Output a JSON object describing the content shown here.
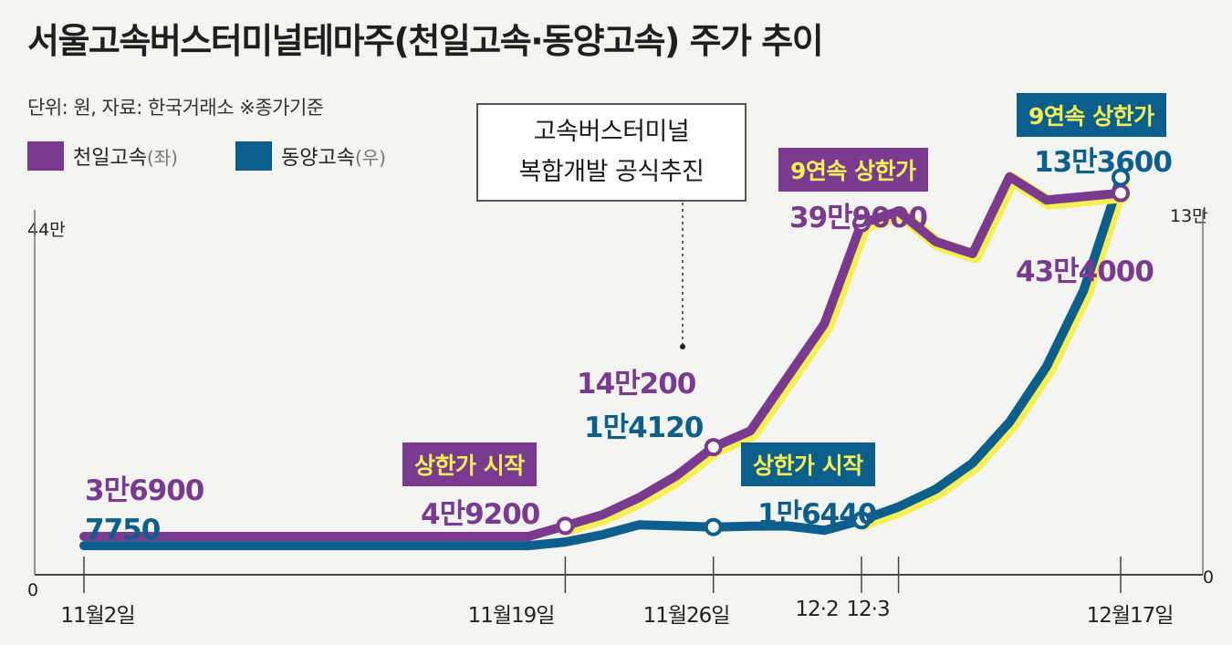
{
  "title": "서울고속버스터미널테마주(천일고속·동양고속) 주가 추이",
  "unit_source": "단위: 원, 자료: 한국거래소 ※종가기준",
  "legend": [
    {
      "name": "천일고속",
      "side": "(좌)",
      "color": "#7a3a8f"
    },
    {
      "name": "동양고속",
      "side": "(우)",
      "color": "#0c5f8c"
    }
  ],
  "colors": {
    "purple": "#7a3a8f",
    "blue": "#0c5f8c",
    "highlight": "#f7f055",
    "background": "#f4f4f2"
  },
  "callout": {
    "line1": "고속버스터미널",
    "line2": "복합개발 공식추진"
  },
  "labels": {
    "start_purple": "3만6900",
    "start_blue": "7750",
    "limit_start_1": "상한가 시작",
    "nov19_purple": "4만9200",
    "nov26_purple": "14만200",
    "nov26_blue": "1만4120",
    "limit_start_2": "상한가 시작",
    "dec2_blue": "1만6440",
    "limit9_purple": "9연속 상한가",
    "dec3_purple": "39만9000",
    "limit9_blue": "9연속 상한가",
    "dec17_blue": "13만3600",
    "dec17_purple": "43만4000"
  },
  "chart_data": {
    "type": "line",
    "title": "서울고속버스터미널테마주(천일고속·동양고속) 주가 추이",
    "x_tick_labels": [
      "11월2일",
      "11월19일",
      "11월26일",
      "12·2",
      "12·3",
      "12월17일"
    ],
    "y_left": {
      "label": "천일고속(좌)",
      "range": [
        0,
        440000
      ],
      "tick_labels": [
        "0",
        "44만"
      ]
    },
    "y_right": {
      "label": "동양고속(우)",
      "range": [
        0,
        130000
      ],
      "tick_labels": [
        "0",
        "13만"
      ]
    },
    "series": [
      {
        "name": "천일고속",
        "axis": "left",
        "points": [
          {
            "x": 0,
            "y": 36900
          },
          {
            "x": 12,
            "y": 36900
          },
          {
            "x": 13,
            "y": 49200
          },
          {
            "x": 14,
            "y": 62000
          },
          {
            "x": 15,
            "y": 82000
          },
          {
            "x": 16,
            "y": 107000
          },
          {
            "x": 17,
            "y": 140200
          },
          {
            "x": 18,
            "y": 159000
          },
          {
            "x": 19,
            "y": 221000
          },
          {
            "x": 20,
            "y": 283000
          },
          {
            "x": 21,
            "y": 399000
          },
          {
            "x": 22,
            "y": 413000
          },
          {
            "x": 23,
            "y": 378000
          },
          {
            "x": 24,
            "y": 364000
          },
          {
            "x": 25,
            "y": 453000
          },
          {
            "x": 26,
            "y": 426000
          },
          {
            "x": 28,
            "y": 434000
          }
        ],
        "highlighted": [
          {
            "x": 13,
            "y": 49200,
            "label": "4만9200"
          },
          {
            "x": 17,
            "y": 140200,
            "label": "14만200"
          },
          {
            "x": 21,
            "y": 399000,
            "label": "39만9000"
          },
          {
            "x": 28,
            "y": 434000,
            "label": "43만4000"
          }
        ]
      },
      {
        "name": "동양고속",
        "axis": "right",
        "points": [
          {
            "x": 0,
            "y": 7750
          },
          {
            "x": 12,
            "y": 7750
          },
          {
            "x": 13,
            "y": 9000
          },
          {
            "x": 14,
            "y": 11500
          },
          {
            "x": 15,
            "y": 14900
          },
          {
            "x": 17,
            "y": 14120
          },
          {
            "x": 18,
            "y": 14400
          },
          {
            "x": 19,
            "y": 14500
          },
          {
            "x": 20,
            "y": 13000
          },
          {
            "x": 21,
            "y": 16440
          },
          {
            "x": 22,
            "y": 21000
          },
          {
            "x": 23,
            "y": 27000
          },
          {
            "x": 24,
            "y": 36000
          },
          {
            "x": 25,
            "y": 50000
          },
          {
            "x": 26,
            "y": 69000
          },
          {
            "x": 27,
            "y": 95000
          },
          {
            "x": 28,
            "y": 133600
          }
        ],
        "highlighted": [
          {
            "x": 17,
            "y": 14120,
            "label": "1만4120"
          },
          {
            "x": 21,
            "y": 16440,
            "label": "1만6440"
          },
          {
            "x": 28,
            "y": 133600,
            "label": "13만3600"
          }
        ]
      }
    ],
    "annotations": [
      "상한가 시작",
      "상한가 시작",
      "9연속 상한가",
      "9연속 상한가",
      "고속버스터미널 복합개발 공식추진"
    ]
  }
}
